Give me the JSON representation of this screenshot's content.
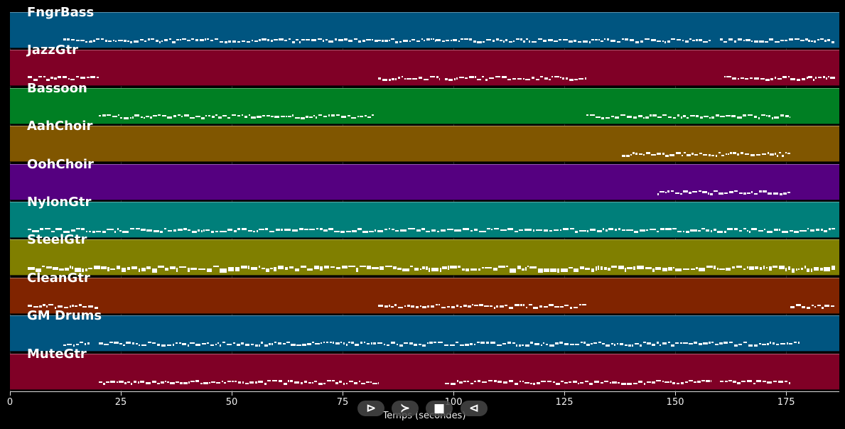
{
  "tracks": [
    {
      "name": "FngrBass",
      "color": "#005580"
    },
    {
      "name": "JazzGtr",
      "color": "#800026"
    },
    {
      "name": "Bassoon",
      "color": "#007f23"
    },
    {
      "name": "AahChoir",
      "color": "#805600"
    },
    {
      "name": "OohChoir",
      "color": "#550080"
    },
    {
      "name": "NylonGtr",
      "color": "#007f7a"
    },
    {
      "name": "SteelGtr",
      "color": "#807f00"
    },
    {
      "name": "CleanGtr",
      "color": "#802400"
    },
    {
      "name": "GM Drums",
      "color": "#005580"
    },
    {
      "name": "MuteGtr",
      "color": "#800026"
    }
  ],
  "axis": {
    "title": "Temps (secondes)",
    "min": 0,
    "max": 187,
    "ticks": [
      0,
      25,
      50,
      75,
      100,
      125,
      150,
      175
    ]
  },
  "controls": [
    {
      "icon": "play-outline-icon",
      "glyph": "⊳"
    },
    {
      "icon": "fast-forward-icon",
      "glyph": "≻"
    },
    {
      "icon": "stop-icon",
      "glyph": "■"
    },
    {
      "icon": "rewind-icon",
      "glyph": "⊲"
    }
  ]
}
